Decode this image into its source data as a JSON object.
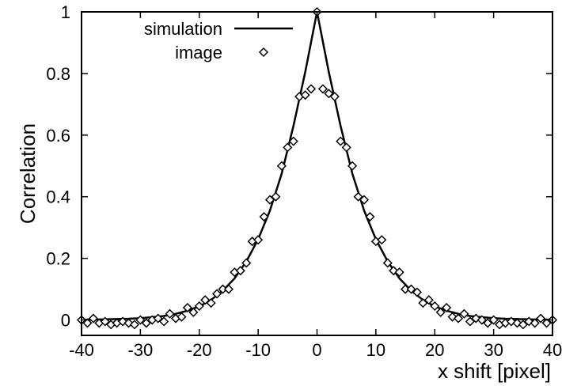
{
  "chart_data": {
    "type": "line",
    "title": "",
    "xlabel": "x shift [pixel]",
    "ylabel": "Correlation",
    "xlim": [
      -40,
      40
    ],
    "ylim": [
      -0.05,
      1.0
    ],
    "xticks": [
      -40,
      -30,
      -20,
      -10,
      0,
      10,
      20,
      30,
      40
    ],
    "xtick_labels": [
      "-40",
      "-30",
      "-20",
      "-10",
      "0",
      "10",
      "20",
      "30",
      "40"
    ],
    "yticks": [
      0,
      0.2,
      0.4,
      0.6,
      0.8,
      1
    ],
    "ytick_labels": [
      "0",
      "0.2",
      "0.4",
      "0.6",
      "0.8",
      "1"
    ],
    "grid": false,
    "legend_position": "top-center",
    "series": [
      {
        "name": "simulation",
        "style": "line",
        "color": "#000000",
        "x": [
          -40,
          -38,
          -36,
          -34,
          -32,
          -30,
          -28,
          -26,
          -24,
          -22,
          -20,
          -18,
          -16,
          -14,
          -12,
          -10,
          -8,
          -6,
          -4,
          -2,
          0,
          2,
          4,
          6,
          8,
          10,
          12,
          14,
          16,
          18,
          20,
          22,
          24,
          26,
          28,
          30,
          32,
          34,
          36,
          38,
          40
        ],
        "y": [
          0.001,
          0.001,
          0.002,
          0.003,
          0.004,
          0.006,
          0.009,
          0.013,
          0.02,
          0.03,
          0.044,
          0.065,
          0.095,
          0.135,
          0.19,
          0.262,
          0.355,
          0.475,
          0.63,
          0.805,
          1.0,
          0.805,
          0.63,
          0.475,
          0.355,
          0.262,
          0.19,
          0.135,
          0.095,
          0.065,
          0.044,
          0.03,
          0.02,
          0.013,
          0.009,
          0.006,
          0.004,
          0.003,
          0.002,
          0.001,
          0.001
        ]
      },
      {
        "name": "image",
        "style": "markers",
        "marker": "diamond",
        "color": "#000000",
        "x": [
          -40,
          -39,
          -38,
          -37,
          -36,
          -35,
          -34,
          -33,
          -32,
          -31,
          -30,
          -29,
          -28,
          -27,
          -26,
          -25,
          -24,
          -23,
          -22,
          -21,
          -20,
          -19,
          -18,
          -17,
          -16,
          -15,
          -14,
          -13,
          -12,
          -11,
          -10,
          -9,
          -8,
          -7,
          -6,
          -5,
          -4,
          -3,
          -2,
          -1,
          0,
          1,
          2,
          3,
          4,
          5,
          6,
          7,
          8,
          9,
          10,
          11,
          12,
          13,
          14,
          15,
          16,
          17,
          18,
          19,
          20,
          21,
          22,
          23,
          24,
          25,
          26,
          27,
          28,
          29,
          30,
          31,
          32,
          33,
          34,
          35,
          36,
          37,
          38,
          39,
          40
        ],
        "y": [
          0.0,
          -0.01,
          0.005,
          -0.01,
          -0.005,
          -0.015,
          -0.01,
          -0.005,
          -0.01,
          -0.015,
          0.0,
          -0.01,
          0.0,
          0.005,
          -0.005,
          0.02,
          0.005,
          0.01,
          0.04,
          0.025,
          0.045,
          0.065,
          0.055,
          0.085,
          0.1,
          0.1,
          0.155,
          0.16,
          0.185,
          0.255,
          0.26,
          0.335,
          0.39,
          0.4,
          0.5,
          0.56,
          0.58,
          0.725,
          0.73,
          0.75,
          1.0,
          0.75,
          0.735,
          0.725,
          0.58,
          0.56,
          0.5,
          0.4,
          0.39,
          0.335,
          0.255,
          0.26,
          0.185,
          0.16,
          0.155,
          0.1,
          0.1,
          0.09,
          0.055,
          0.065,
          0.045,
          0.025,
          0.04,
          0.01,
          0.005,
          0.02,
          -0.005,
          0.005,
          0.0,
          -0.01,
          0.0,
          -0.015,
          -0.01,
          -0.005,
          -0.01,
          -0.015,
          -0.005,
          -0.01,
          0.005,
          -0.01,
          0.0
        ]
      }
    ]
  }
}
